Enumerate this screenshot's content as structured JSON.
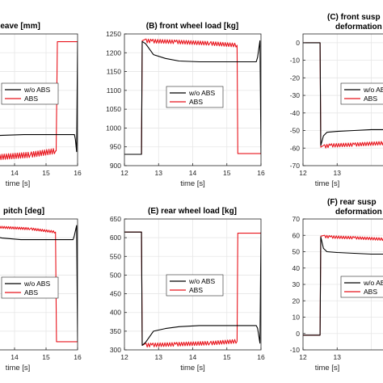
{
  "colors": {
    "wo_abs": "#000000",
    "abs": "#e8141c",
    "grid": "#e6e6e6",
    "axis": "#262626"
  },
  "chart_data": [
    {
      "panel": "A",
      "type": "line",
      "title": "heave [mm]",
      "xlabel": "time [s]",
      "ylabel": "",
      "xlim": [
        12,
        16
      ],
      "ylim": [
        -12,
        5
      ],
      "xticks": [
        14,
        15,
        16
      ],
      "yticks": [],
      "grid": true,
      "legend": "middle-right",
      "series": [
        {
          "name": "w/o ABS",
          "color": "#000000",
          "x": [
            12,
            12.5,
            12.55,
            12.65,
            12.9,
            13.5,
            14.3,
            15.9,
            15.93,
            15.97,
            16.0
          ],
          "y": [
            4,
            4,
            -7,
            -8.1,
            -8.2,
            -8.1,
            -8.0,
            -8.0,
            -8.6,
            -10.2,
            4
          ]
        },
        {
          "name": "ABS",
          "color": "#e8141c",
          "x": [
            12,
            12.5,
            12.55,
            12.7,
            13.5,
            14.5,
            15.3,
            15.32,
            15.36,
            16.0
          ],
          "y": [
            4,
            4,
            -10.8,
            -11.0,
            -10.9,
            -10.6,
            -10.1,
            -10.1,
            4,
            4
          ],
          "oscillation": {
            "from": 12.6,
            "to": 15.3,
            "amplitude": 0.35
          }
        }
      ]
    },
    {
      "panel": "B",
      "type": "line",
      "title": "(B) front wheel load [kg]",
      "xlabel": "time [s]",
      "ylabel": "",
      "xlim": [
        12,
        16
      ],
      "ylim": [
        900,
        1250
      ],
      "xticks": [
        12,
        13,
        14,
        15,
        16
      ],
      "yticks": [
        900,
        950,
        1000,
        1050,
        1100,
        1150,
        1200,
        1250
      ],
      "grid": true,
      "legend": "middle-right",
      "series": [
        {
          "name": "w/o ABS",
          "color": "#000000",
          "x": [
            12,
            12.5,
            12.52,
            12.62,
            12.85,
            13.2,
            13.6,
            14.2,
            15.86,
            15.9,
            15.97,
            16.0
          ],
          "y": [
            930,
            930,
            1230,
            1224,
            1195,
            1185,
            1178,
            1176,
            1176,
            1188,
            1232,
            930
          ],
          "osc": null
        },
        {
          "name": "ABS",
          "color": "#e8141c",
          "x": [
            12,
            12.5,
            12.52,
            12.8,
            13.5,
            14.5,
            15.3,
            15.32,
            16.0
          ],
          "y": [
            930,
            930,
            1232,
            1231,
            1229,
            1225,
            1220,
            932,
            932
          ],
          "oscillation": {
            "from": 12.6,
            "to": 15.3,
            "amplitude": 5
          }
        }
      ]
    },
    {
      "panel": "C",
      "type": "line",
      "title": "(C) front susp",
      "title_line2": "deformation",
      "xlabel": "time [s]",
      "ylabel": "",
      "xlim": [
        12,
        16
      ],
      "ylim": [
        -70,
        5
      ],
      "xticks": [
        12,
        13
      ],
      "yticks": [
        -70,
        -60,
        -50,
        -40,
        -30,
        -20,
        -10,
        0
      ],
      "grid": true,
      "legend": "middle-right",
      "series": [
        {
          "name": "w/o ABS",
          "color": "#000000",
          "x": [
            12,
            12.5,
            12.52,
            12.6,
            12.7,
            13.0,
            13.5,
            14.0,
            14.4,
            14.6,
            15.0,
            16.0
          ],
          "y": [
            0,
            0,
            -58.5,
            -53,
            -51,
            -50.5,
            -50,
            -49.5,
            -49.5,
            -48,
            -48,
            -48
          ]
        },
        {
          "name": "ABS",
          "color": "#e8141c",
          "x": [
            12,
            12.5,
            12.52,
            12.8,
            13.5,
            14.5,
            15.3,
            16.0
          ],
          "y": [
            0,
            0,
            -59.5,
            -58.5,
            -58,
            -57,
            -56,
            -56
          ],
          "oscillation": {
            "from": 12.6,
            "to": 15.0,
            "amplitude": 1.0
          }
        }
      ]
    },
    {
      "panel": "D",
      "type": "line",
      "title": "pitch [deg]",
      "xlabel": "time [s]",
      "ylabel": "",
      "xlim": [
        12,
        16
      ],
      "ylim": [
        -1.2,
        1.2
      ],
      "xticks": [
        14,
        15,
        16
      ],
      "yticks": [],
      "grid": true,
      "legend": "middle-right",
      "series": [
        {
          "name": "w/o ABS",
          "color": "#000000",
          "x": [
            12,
            12.5,
            12.55,
            12.7,
            13.0,
            13.6,
            14.2,
            15.86,
            15.9,
            15.97,
            16.0
          ],
          "y": [
            -1.05,
            -1.05,
            1.05,
            1.02,
            0.92,
            0.85,
            0.82,
            0.82,
            0.9,
            1.08,
            -1.05
          ]
        },
        {
          "name": "ABS",
          "color": "#e8141c",
          "x": [
            12,
            12.5,
            12.55,
            12.8,
            13.5,
            14.5,
            15.3,
            15.33,
            16.0
          ],
          "y": [
            -1.05,
            -1.05,
            1.08,
            1.07,
            1.05,
            1.02,
            0.96,
            -1.05,
            -1.05
          ],
          "oscillation": {
            "from": 12.6,
            "to": 15.3,
            "amplitude": 0.02
          }
        }
      ]
    },
    {
      "panel": "E",
      "type": "line",
      "title": "(E)  rear wheel load [kg]",
      "xlabel": "time [s]",
      "ylabel": "",
      "xlim": [
        12,
        16
      ],
      "ylim": [
        300,
        650
      ],
      "xticks": [
        12,
        13,
        14,
        15,
        16
      ],
      "yticks": [
        300,
        350,
        400,
        450,
        500,
        550,
        600,
        650
      ],
      "grid": true,
      "legend": "middle-right",
      "series": [
        {
          "name": "w/o ABS",
          "color": "#000000",
          "x": [
            12,
            12.5,
            12.52,
            12.62,
            12.85,
            13.2,
            13.6,
            14.2,
            15.86,
            15.9,
            15.97,
            16.0
          ],
          "y": [
            615,
            615,
            312,
            320,
            350,
            357,
            362,
            365,
            365,
            358,
            318,
            615
          ]
        },
        {
          "name": "ABS",
          "color": "#e8141c",
          "x": [
            12,
            12.5,
            12.52,
            12.8,
            13.5,
            14.5,
            15.3,
            15.32,
            16.0
          ],
          "y": [
            615,
            615,
            312,
            313,
            315,
            318,
            323,
            612,
            612
          ],
          "oscillation": {
            "from": 12.6,
            "to": 15.3,
            "amplitude": 5
          }
        }
      ]
    },
    {
      "panel": "F",
      "type": "line",
      "title": "(F) rear susp",
      "title_line2": "deformation",
      "xlabel": "time [s]",
      "ylabel": "",
      "xlim": [
        12,
        16
      ],
      "ylim": [
        -10,
        70
      ],
      "xticks": [
        12,
        13
      ],
      "yticks": [
        -10,
        0,
        10,
        20,
        30,
        40,
        50,
        60,
        70
      ],
      "grid": true,
      "legend": "middle-right",
      "series": [
        {
          "name": "w/o ABS",
          "color": "#000000",
          "x": [
            12,
            12.5,
            12.52,
            12.6,
            12.7,
            13.0,
            13.5,
            14.0,
            14.4,
            14.6,
            15.0,
            16.0
          ],
          "y": [
            -1,
            -1,
            59,
            52,
            50,
            49.5,
            49,
            48.5,
            48.5,
            49,
            49,
            49
          ]
        },
        {
          "name": "ABS",
          "color": "#e8141c",
          "x": [
            12,
            12.5,
            12.52,
            12.8,
            13.5,
            14.5,
            15.3,
            16.0
          ],
          "y": [
            -1,
            -1,
            59.5,
            59,
            58.5,
            57.5,
            56.5,
            56.5
          ],
          "oscillation": {
            "from": 12.6,
            "to": 15.0,
            "amplitude": 0.8
          }
        }
      ]
    }
  ]
}
